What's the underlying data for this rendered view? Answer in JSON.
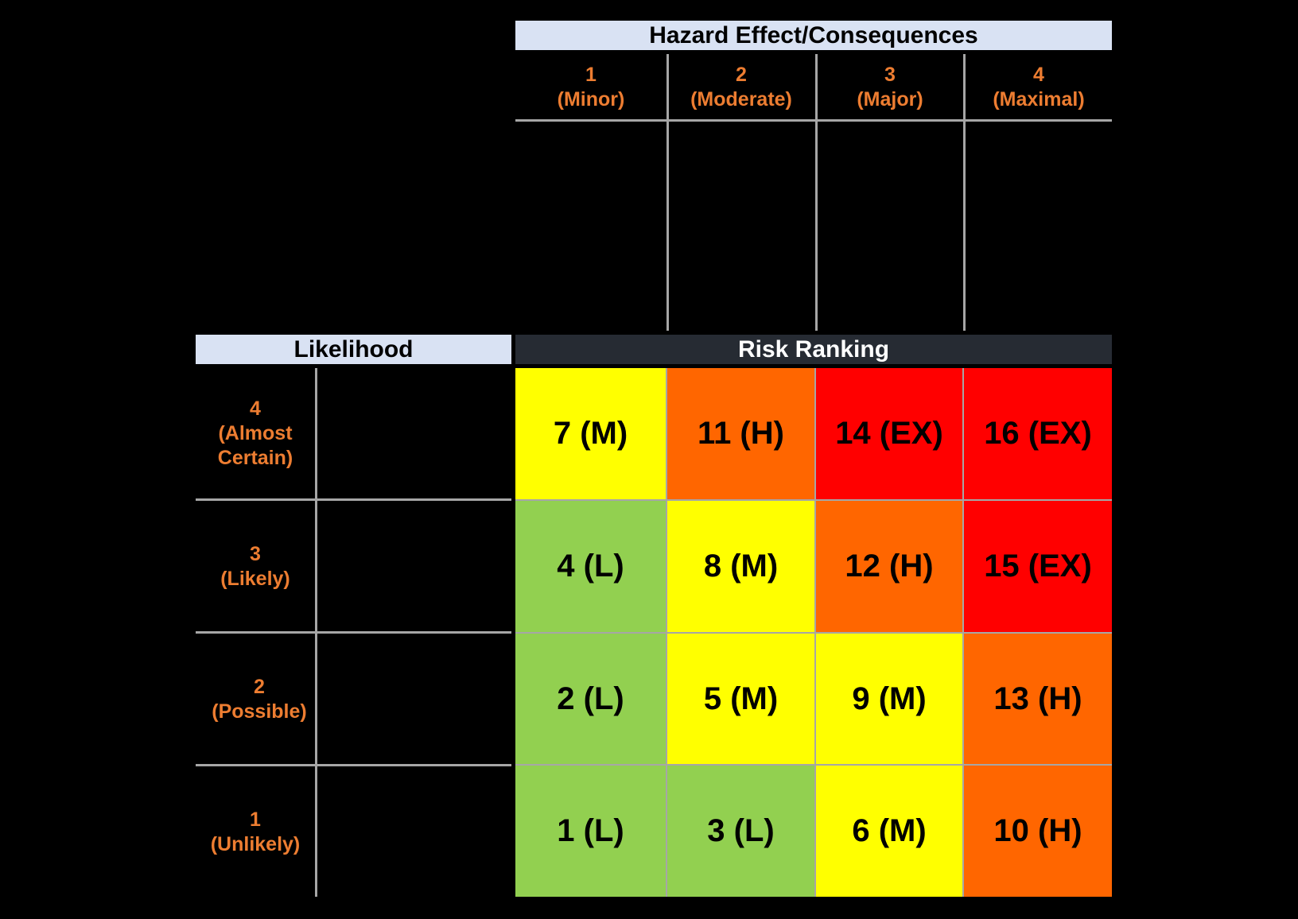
{
  "consequence_header": "Hazard Effect/Consequences",
  "likelihood_header": "Likelihood",
  "risk_header": "Risk Ranking",
  "columns": [
    {
      "num": "1",
      "label": "(Minor)"
    },
    {
      "num": "2",
      "label": "(Moderate)"
    },
    {
      "num": "3",
      "label": "(Major)"
    },
    {
      "num": "4",
      "label": "(Maximal)"
    }
  ],
  "rows": [
    {
      "num": "4",
      "label_line1": "(Almost",
      "label_line2": "Certain)"
    },
    {
      "num": "3",
      "label_line1": "(Likely)",
      "label_line2": ""
    },
    {
      "num": "2",
      "label_line1": "(Possible)",
      "label_line2": ""
    },
    {
      "num": "1",
      "label_line1": "(Unlikely)",
      "label_line2": ""
    }
  ],
  "matrix": [
    [
      {
        "text": "7 (M)",
        "level": "M"
      },
      {
        "text": "11 (H)",
        "level": "H"
      },
      {
        "text": "14 (EX)",
        "level": "EX"
      },
      {
        "text": "16 (EX)",
        "level": "EX"
      }
    ],
    [
      {
        "text": "4 (L)",
        "level": "L"
      },
      {
        "text": "8 (M)",
        "level": "M"
      },
      {
        "text": "12 (H)",
        "level": "H"
      },
      {
        "text": "15 (EX)",
        "level": "EX"
      }
    ],
    [
      {
        "text": "2 (L)",
        "level": "L"
      },
      {
        "text": "5 (M)",
        "level": "M"
      },
      {
        "text": "9 (M)",
        "level": "M"
      },
      {
        "text": "13 (H)",
        "level": "H"
      }
    ],
    [
      {
        "text": "1 (L)",
        "level": "L"
      },
      {
        "text": "3 (L)",
        "level": "L"
      },
      {
        "text": "6 (M)",
        "level": "M"
      },
      {
        "text": "10 (H)",
        "level": "H"
      }
    ]
  ],
  "level_colors": {
    "L": "#92d050",
    "M": "#ffff00",
    "H": "#ff6600",
    "EX": "#ff0000"
  }
}
